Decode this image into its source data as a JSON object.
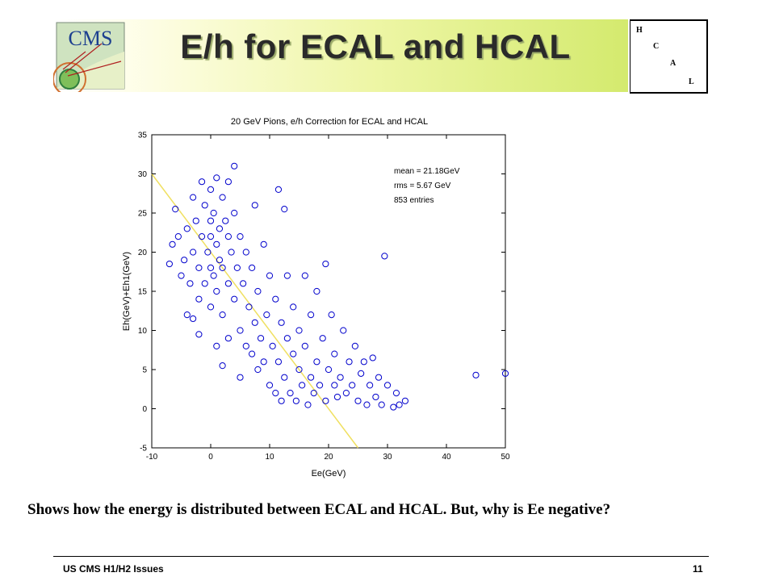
{
  "slide": {
    "title": "E/h for ECAL and HCAL",
    "logo_text": "CMS",
    "hcal_letters": [
      "H",
      "C",
      "A",
      "L"
    ],
    "caption": "Shows how the energy is distributed between ECAL and HCAL. But, why is Ee negative?",
    "footer_left": "US CMS H1/H2 Issues",
    "page_number": "11"
  },
  "colors": {
    "title_band_end": "#d4ea6e",
    "marker": "#0000cc",
    "fit_line": "#f0e060"
  },
  "chart_data": {
    "type": "scatter",
    "title": "20 GeV Pions, e/h Correction for ECAL and HCAL",
    "xlabel": "Ee(GeV)",
    "ylabel": "Eh(GeV)+Eh1(GeV)",
    "xlim": [
      -10,
      50
    ],
    "ylim": [
      -5,
      35
    ],
    "xticks": [
      "-10",
      "0",
      "10",
      "20",
      "30",
      "40",
      "50"
    ],
    "yticks": [
      "-5",
      "0",
      "5",
      "10",
      "15",
      "20",
      "25",
      "30",
      "35"
    ],
    "grid": false,
    "annotations": [
      "mean = 21.18GeV",
      "rms = 5.67 GeV",
      "853 entries"
    ],
    "reference_line": {
      "x": [
        -10,
        25
      ],
      "y": [
        30,
        -5
      ]
    },
    "points": [
      [
        -7,
        18.5
      ],
      [
        -6.5,
        21
      ],
      [
        -6,
        25.5
      ],
      [
        -5.5,
        22
      ],
      [
        -5,
        17
      ],
      [
        -4.5,
        19
      ],
      [
        -4,
        23
      ],
      [
        -4,
        12
      ],
      [
        -3.5,
        16
      ],
      [
        -3,
        27
      ],
      [
        -3,
        20
      ],
      [
        -2.5,
        24
      ],
      [
        -2,
        18
      ],
      [
        -2,
        14
      ],
      [
        -1.5,
        29
      ],
      [
        -1.5,
        22
      ],
      [
        -1,
        26
      ],
      [
        -1,
        16
      ],
      [
        -0.5,
        20
      ],
      [
        0,
        28
      ],
      [
        0,
        24
      ],
      [
        0,
        18
      ],
      [
        0,
        13
      ],
      [
        0,
        22
      ],
      [
        0.5,
        25
      ],
      [
        0.5,
        17
      ],
      [
        1,
        29.5
      ],
      [
        1,
        21
      ],
      [
        1,
        15
      ],
      [
        1.5,
        23
      ],
      [
        1.5,
        19
      ],
      [
        2,
        27
      ],
      [
        2,
        18
      ],
      [
        2,
        12
      ],
      [
        2.5,
        24
      ],
      [
        3,
        29
      ],
      [
        3,
        22
      ],
      [
        3,
        16
      ],
      [
        3.5,
        20
      ],
      [
        4,
        31
      ],
      [
        4,
        25
      ],
      [
        4,
        14
      ],
      [
        4.5,
        18
      ],
      [
        5,
        22
      ],
      [
        5,
        10
      ],
      [
        5.5,
        16
      ],
      [
        6,
        20
      ],
      [
        6,
        8
      ],
      [
        6.5,
        13
      ],
      [
        7,
        18
      ],
      [
        7,
        7
      ],
      [
        7.5,
        26
      ],
      [
        7.5,
        11
      ],
      [
        8,
        15
      ],
      [
        8,
        5
      ],
      [
        8.5,
        9
      ],
      [
        9,
        21
      ],
      [
        9,
        6
      ],
      [
        9.5,
        12
      ],
      [
        10,
        17
      ],
      [
        10,
        3
      ],
      [
        10.5,
        8
      ],
      [
        11,
        14
      ],
      [
        11,
        2
      ],
      [
        11.5,
        28
      ],
      [
        11.5,
        6
      ],
      [
        12,
        11
      ],
      [
        12,
        1
      ],
      [
        12.5,
        25.5
      ],
      [
        12.5,
        4
      ],
      [
        13,
        9
      ],
      [
        13,
        17
      ],
      [
        13.5,
        2
      ],
      [
        14,
        7
      ],
      [
        14,
        13
      ],
      [
        14.5,
        1
      ],
      [
        15,
        5
      ],
      [
        15,
        10
      ],
      [
        15.5,
        3
      ],
      [
        16,
        17
      ],
      [
        16,
        8
      ],
      [
        16.5,
        0.5
      ],
      [
        17,
        4
      ],
      [
        17,
        12
      ],
      [
        17.5,
        2
      ],
      [
        18,
        6
      ],
      [
        18,
        15
      ],
      [
        18.5,
        3
      ],
      [
        19,
        9
      ],
      [
        19.5,
        1
      ],
      [
        19.5,
        18.5
      ],
      [
        20,
        5
      ],
      [
        20.5,
        12
      ],
      [
        21,
        3
      ],
      [
        21,
        7
      ],
      [
        21.5,
        1.5
      ],
      [
        22,
        4
      ],
      [
        22.5,
        10
      ],
      [
        23,
        2
      ],
      [
        23.5,
        6
      ],
      [
        24,
        3
      ],
      [
        24.5,
        8
      ],
      [
        25,
        1
      ],
      [
        25.5,
        4.5
      ],
      [
        26,
        6
      ],
      [
        26.5,
        0.5
      ],
      [
        27,
        3
      ],
      [
        27.5,
        6.5
      ],
      [
        28,
        1.5
      ],
      [
        28.5,
        4
      ],
      [
        29,
        0.5
      ],
      [
        29.5,
        19.5
      ],
      [
        30,
        3
      ],
      [
        31,
        0.2
      ],
      [
        31.5,
        2
      ],
      [
        32,
        0.5
      ],
      [
        33,
        1
      ],
      [
        45,
        4.3
      ],
      [
        50,
        4.5
      ],
      [
        -3,
        11.5
      ],
      [
        1,
        8
      ],
      [
        3,
        9
      ],
      [
        5,
        4
      ],
      [
        -2,
        9.5
      ],
      [
        2,
        5.5
      ]
    ]
  }
}
